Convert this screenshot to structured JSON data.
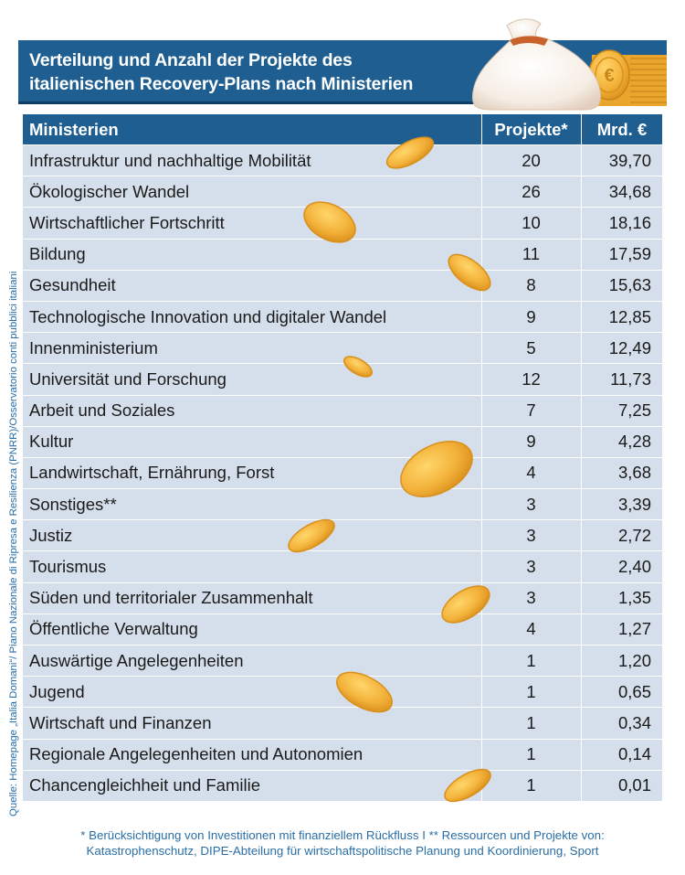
{
  "title_lines": [
    "Verteilung und Anzahl der Projekte des",
    "italienischen Recovery-Plans nach Ministerien"
  ],
  "source": "Quelle: Homepage „Italia Domani“/ Piano Nazionale di Ripresa e Resilienza (PNRR)/Osservatorio conti pubblici italiani",
  "footnote_lines": [
    "* Berücksichtigung von Investitionen mit finanziellem Rückfluss I ** Ressourcen und Projekte von:",
    "Katastrophenschutz, DIPE-Abteilung für wirtschaftspolitische Planung und Koordinierung, Sport"
  ],
  "colors": {
    "header_blue": "#1f5e91",
    "row_bg": "#d5dfeb",
    "text_blue": "#2a6ea6",
    "coin_gold": "#f3b23a"
  },
  "icons": [
    "money-bag-icon",
    "coin-icon"
  ],
  "chart_data": {
    "type": "table",
    "columns": [
      "Ministerien",
      "Projekte*",
      "Mrd. €"
    ],
    "rows": [
      [
        "Infrastruktur und nachhaltige Mobilität",
        "20",
        "39,70"
      ],
      [
        "Ökologischer Wandel",
        "26",
        "34,68"
      ],
      [
        "Wirtschaftlicher Fortschritt",
        "10",
        "18,16"
      ],
      [
        "Bildung",
        "11",
        "17,59"
      ],
      [
        "Gesundheit",
        "8",
        "15,63"
      ],
      [
        "Technologische Innovation und digitaler Wandel",
        "9",
        "12,85"
      ],
      [
        "Innenministerium",
        "5",
        "12,49"
      ],
      [
        "Universität und Forschung",
        "12",
        "11,73"
      ],
      [
        "Arbeit und Soziales",
        "7",
        "7,25"
      ],
      [
        "Kultur",
        "9",
        "4,28"
      ],
      [
        "Landwirtschaft, Ernährung, Forst",
        "4",
        "3,68"
      ],
      [
        "Sonstiges**",
        "3",
        "3,39"
      ],
      [
        "Justiz",
        "3",
        "2,72"
      ],
      [
        "Tourismus",
        "3",
        "2,40"
      ],
      [
        "Süden und territorialer Zusammenhalt",
        "3",
        "1,35"
      ],
      [
        "Öffentliche Verwaltung",
        "4",
        "1,27"
      ],
      [
        "Auswärtige Angelegenheiten",
        "1",
        "1,20"
      ],
      [
        "Jugend",
        "1",
        "0,65"
      ],
      [
        "Wirtschaft und Finanzen",
        "1",
        "0,34"
      ],
      [
        "Regionale Angelegenheiten und Autonomien",
        "1",
        "0,14"
      ],
      [
        "Chancengleichheit und Familie",
        "1",
        "0,01"
      ]
    ]
  }
}
